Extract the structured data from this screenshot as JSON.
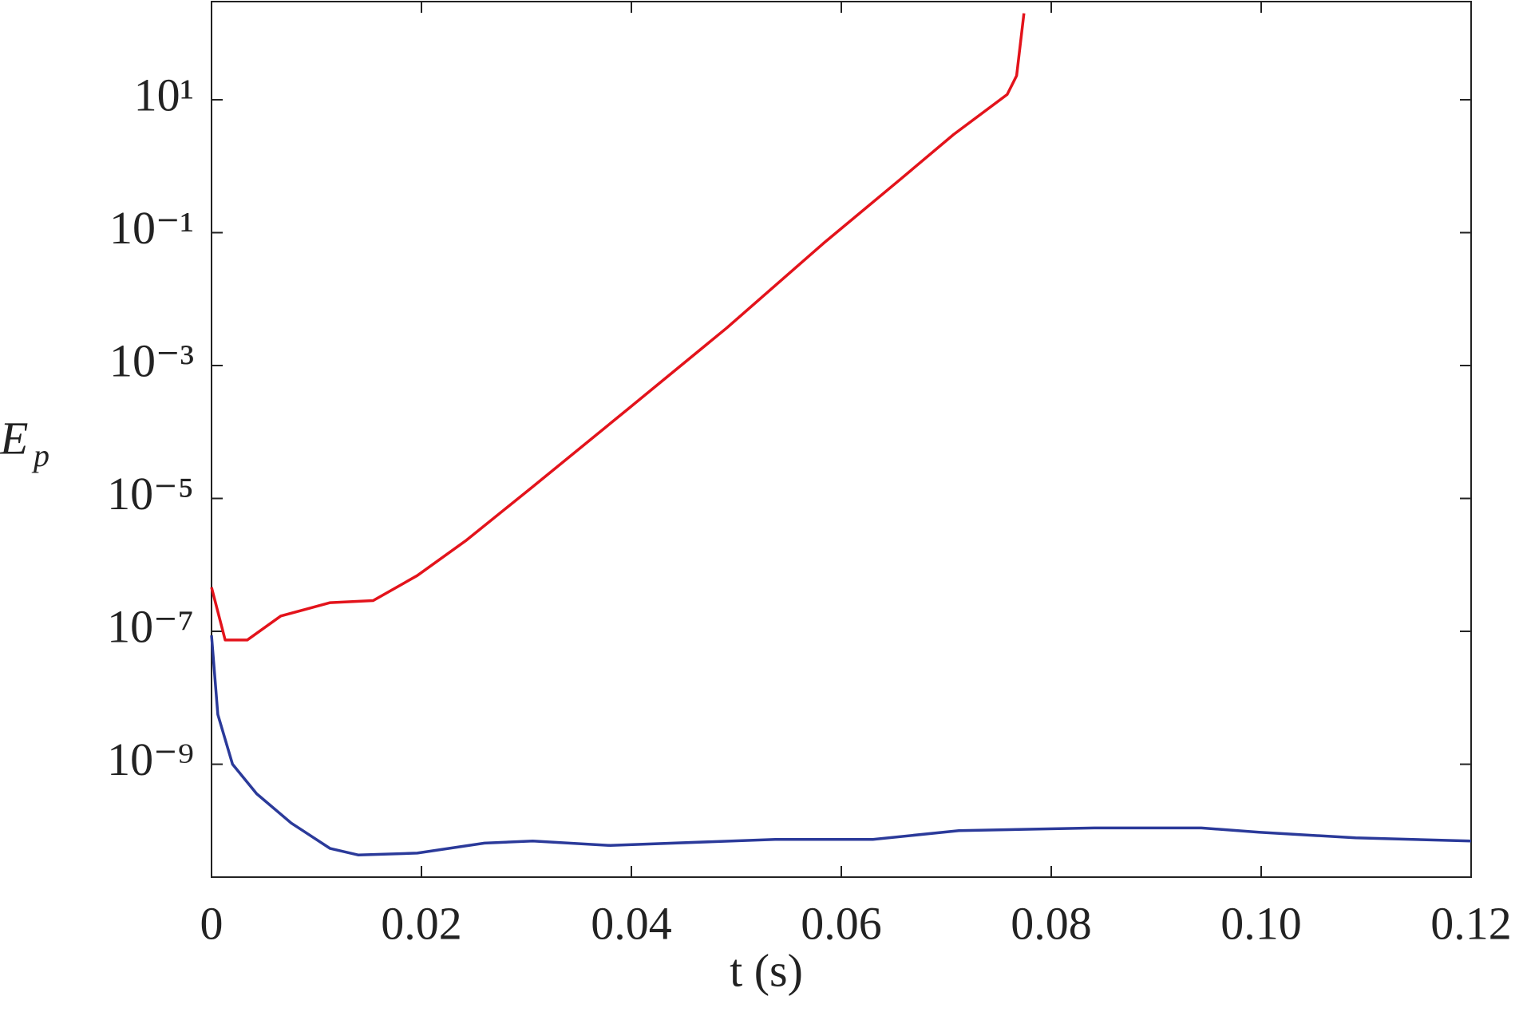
{
  "chart_data": {
    "type": "line",
    "xlabel": "t (s)",
    "ylabel": "E",
    "ylabel_subscript": "p",
    "xlim": [
      0,
      0.12
    ],
    "xticks": [
      0,
      0.02,
      0.04,
      0.06,
      0.08,
      {
        "value": 0.1,
        "label": "0.10"
      },
      0.12
    ],
    "ylim": [
      2e-11,
      300
    ],
    "yscale": "log",
    "yticks": [
      {
        "value": 1e-09,
        "label": "10⁻⁹"
      },
      {
        "value": 1e-07,
        "label": "10⁻⁷"
      },
      {
        "value": 1e-05,
        "label": "10⁻⁵"
      },
      {
        "value": 0.001,
        "label": "10⁻³"
      },
      {
        "value": 0.1,
        "label": "10⁻¹"
      },
      {
        "value": 10,
        "label": "10¹"
      }
    ],
    "grid": false,
    "series": [
      {
        "color": "#e3131b",
        "x": [
          0,
          0.0013,
          0.0034,
          0.0066,
          0.0113,
          0.0154,
          0.0196,
          0.0242,
          0.0306,
          0.0398,
          0.0491,
          0.0583,
          0.0657,
          0.0707,
          0.0758,
          0.0767,
          0.0774
        ],
        "values": [
          4.6e-07,
          7.4e-08,
          7.4e-08,
          1.7e-07,
          2.7e-07,
          2.9e-07,
          6.9e-07,
          2.3e-06,
          1.5e-05,
          0.00023,
          0.0037,
          0.069,
          0.65,
          3.0,
          12,
          23,
          200
        ]
      },
      {
        "color": "#2b3a9a",
        "x": [
          0,
          0.0006,
          0.002,
          0.0043,
          0.0076,
          0.0113,
          0.014,
          0.0196,
          0.026,
          0.0306,
          0.038,
          0.0537,
          0.063,
          0.0712,
          0.0841,
          0.0943,
          0.0998,
          0.109,
          0.12
        ],
        "values": [
          8.7e-08,
          5.6e-09,
          1e-09,
          3.6e-10,
          1.3e-10,
          5.4e-11,
          4.3e-11,
          4.6e-11,
          6.5e-11,
          7e-11,
          6e-11,
          7.4e-11,
          7.4e-11,
          1e-10,
          1.1e-10,
          1.1e-10,
          9.5e-11,
          7.8e-11,
          7e-11
        ]
      }
    ]
  }
}
